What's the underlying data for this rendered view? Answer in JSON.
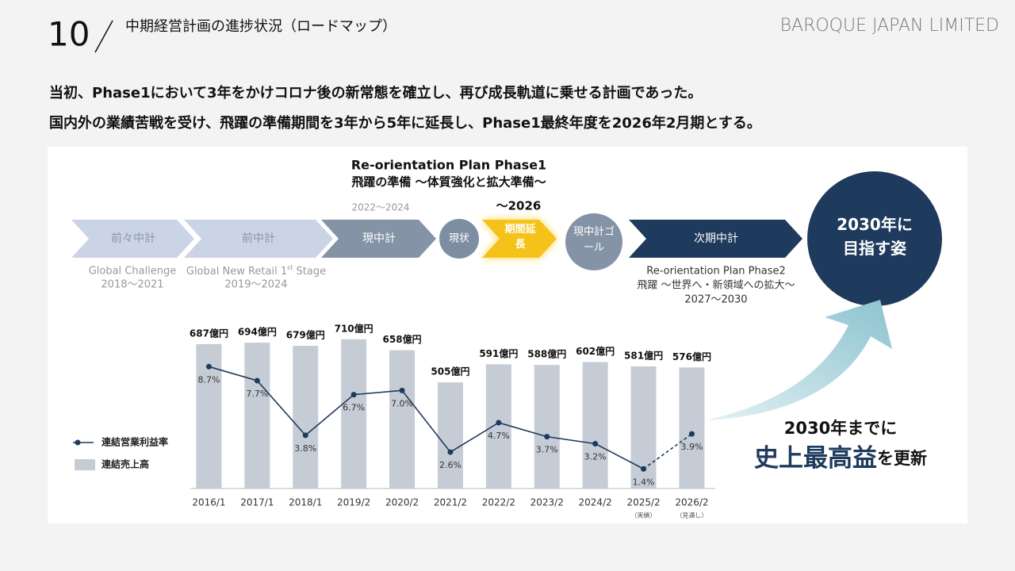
{
  "header": {
    "page_number": "10",
    "title": "中期経営計画の進捗状況（ロードマップ）",
    "company": "BAROQUE JAPAN LIMITED",
    "lead": [
      "当初、Phase1において3年をかけコロナ後の新常態を確立し、再び成長軌道に乗せる計画であった。",
      "国内外の業績苦戦を受け、飛躍の準備期間を3年から5年に延長し、Phase1最終年度を2026年2月期とする。"
    ]
  },
  "roadmap": {
    "phase1_title": "Re-orientation Plan Phase1",
    "phase1_subtitle": "飛躍の準備 〜体質強化と拡大準備〜",
    "current_period": "2022〜2024",
    "extension_period": "〜2026",
    "steps": [
      "前々中計",
      "前中計",
      "現中計",
      "現状",
      "期間延長",
      "現中計ゴール",
      "次期中計"
    ],
    "goal": "2030年に目指す姿",
    "plan1_name": "Global Challenge",
    "plan1_period": "2018〜2021",
    "plan2_name": [
      "Global New Retail 1",
      "st",
      " Stage"
    ],
    "plan2_period": "2019〜2024",
    "phase2_title": "Re-orientation Plan Phase2",
    "phase2_subtitle": "飛躍 〜世界へ・新領域への拡大〜",
    "phase2_period": "2027〜2030",
    "target_lead": "2030年までに",
    "target_main": "史上最高益",
    "target_tail": "を更新"
  },
  "chart_data": {
    "type": "bar_line",
    "categories": [
      "2016/1",
      "2017/1",
      "2018/1",
      "2019/2",
      "2020/2",
      "2021/2",
      "2022/2",
      "2023/2",
      "2024/2",
      "2025/2",
      "2026/2"
    ],
    "category_notes": [
      null,
      null,
      null,
      null,
      null,
      null,
      null,
      null,
      null,
      "（実績）",
      "（見通し）"
    ],
    "series": [
      {
        "name": "連結売上高",
        "color": "#c5ccd6",
        "values": [
          687,
          694,
          679,
          710,
          658,
          505,
          591,
          588,
          602,
          581,
          576
        ],
        "value_labels": [
          "687億円",
          "694億円",
          "679億円",
          "710億円",
          "658億円",
          "505億円",
          "591億円",
          "588億円",
          "602億円",
          "581億円",
          "576億円"
        ]
      },
      {
        "name": "連結営業利益率",
        "color": "#1e3a5c",
        "axis": "y2",
        "dashed_from": 9,
        "values": [
          8.7,
          7.7,
          3.8,
          6.7,
          7.0,
          2.6,
          4.7,
          3.7,
          3.2,
          1.4,
          3.9
        ],
        "value_labels": [
          "8.7%",
          "7.7%",
          "3.8%",
          "6.7%",
          "7.0%",
          "2.6%",
          "4.7%",
          "3.7%",
          "3.2%",
          "1.4%",
          "3.9%"
        ]
      }
    ],
    "ylim": [
      0,
      800
    ],
    "y2lim": [
      0,
      12
    ]
  }
}
